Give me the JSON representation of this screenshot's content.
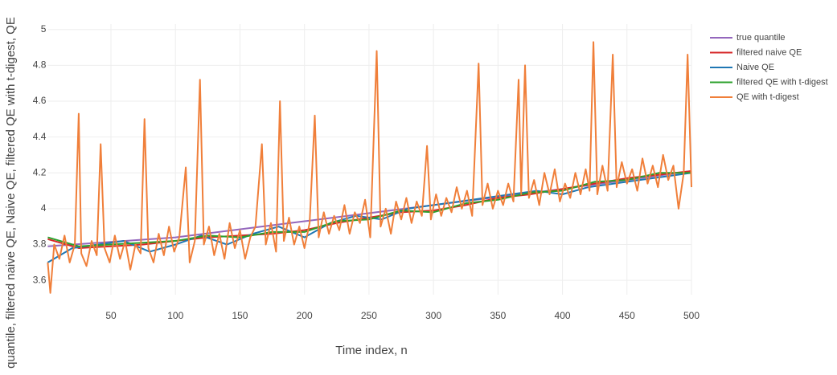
{
  "chart_data": {
    "type": "line",
    "ylabel": "quantile, filtered naive QE, Naive QE, filtered QE with t-digest, QE",
    "xlabel": "Time index, n",
    "xlim": [
      1,
      500
    ],
    "ylim": [
      3.52,
      5.03
    ],
    "xticks": [
      50,
      100,
      150,
      200,
      250,
      300,
      350,
      400,
      450,
      500
    ],
    "yticks": [
      3.6,
      3.8,
      4,
      4.2,
      4.4,
      4.6,
      4.8,
      5
    ],
    "grid": true,
    "legend": "right",
    "series": [
      {
        "name": "true quantile",
        "color": "#9467bd",
        "x": [
          1,
          100,
          200,
          300,
          400,
          500
        ],
        "values": [
          3.79,
          3.84,
          3.93,
          4.02,
          4.11,
          4.21
        ]
      },
      {
        "name": "filtered naive QE",
        "color": "#d62728",
        "x": [
          1,
          25,
          50,
          75,
          100,
          125,
          150,
          175,
          200,
          225,
          250,
          275,
          300,
          325,
          350,
          375,
          400,
          425,
          450,
          475,
          500
        ],
        "values": [
          3.83,
          3.78,
          3.79,
          3.8,
          3.82,
          3.84,
          3.85,
          3.86,
          3.88,
          3.92,
          3.95,
          3.98,
          3.99,
          4.02,
          4.06,
          4.08,
          4.11,
          4.14,
          4.17,
          4.19,
          4.21
        ]
      },
      {
        "name": "Naive QE",
        "color": "#1f77b4",
        "x": [
          1,
          20,
          40,
          60,
          80,
          100,
          120,
          140,
          160,
          180,
          200,
          220,
          240,
          260,
          280,
          300,
          320,
          340,
          360,
          380,
          400,
          420,
          440,
          460,
          480,
          500
        ],
        "values": [
          3.7,
          3.78,
          3.8,
          3.82,
          3.76,
          3.8,
          3.85,
          3.8,
          3.86,
          3.9,
          3.84,
          3.92,
          3.96,
          3.94,
          4.0,
          4.02,
          4.04,
          4.06,
          4.08,
          4.1,
          4.08,
          4.12,
          4.14,
          4.16,
          4.18,
          4.2
        ]
      },
      {
        "name": "filtered QE with t-digest",
        "color": "#2ca02c",
        "x": [
          1,
          25,
          50,
          75,
          100,
          125,
          150,
          175,
          200,
          225,
          250,
          275,
          300,
          325,
          350,
          375,
          400,
          425,
          450,
          475,
          500
        ],
        "values": [
          3.84,
          3.79,
          3.8,
          3.81,
          3.82,
          3.85,
          3.84,
          3.87,
          3.87,
          3.93,
          3.94,
          3.99,
          3.98,
          4.03,
          4.05,
          4.09,
          4.1,
          4.15,
          4.16,
          4.2,
          4.2
        ]
      },
      {
        "name": "QE with t-digest",
        "color": "#f07f3a",
        "x": [
          1,
          3,
          6,
          10,
          14,
          18,
          22,
          25,
          27,
          31,
          35,
          39,
          42,
          45,
          49,
          53,
          57,
          61,
          65,
          69,
          73,
          76,
          79,
          83,
          87,
          91,
          95,
          99,
          103,
          108,
          111,
          115,
          119,
          122,
          126,
          130,
          134,
          138,
          142,
          146,
          150,
          154,
          158,
          162,
          167,
          170,
          174,
          178,
          181,
          184,
          188,
          192,
          196,
          200,
          204,
          208,
          211,
          215,
          219,
          223,
          227,
          231,
          235,
          239,
          243,
          247,
          251,
          256,
          259,
          263,
          267,
          271,
          275,
          279,
          283,
          287,
          291,
          295,
          298,
          302,
          306,
          310,
          314,
          318,
          322,
          326,
          330,
          335,
          338,
          342,
          346,
          350,
          354,
          358,
          362,
          366,
          368,
          371,
          374,
          378,
          382,
          386,
          390,
          394,
          398,
          402,
          406,
          410,
          414,
          418,
          421,
          424,
          427,
          431,
          435,
          439,
          442,
          446,
          450,
          454,
          458,
          462,
          466,
          470,
          474,
          478,
          482,
          486,
          490,
          494,
          497,
          500
        ],
        "values": [
          3.7,
          3.53,
          3.8,
          3.72,
          3.85,
          3.7,
          3.8,
          4.53,
          3.75,
          3.68,
          3.82,
          3.74,
          4.36,
          3.78,
          3.7,
          3.85,
          3.72,
          3.82,
          3.66,
          3.8,
          3.75,
          4.5,
          3.78,
          3.7,
          3.86,
          3.74,
          3.9,
          3.76,
          3.84,
          4.23,
          3.7,
          3.82,
          4.72,
          3.8,
          3.9,
          3.74,
          3.86,
          3.72,
          3.92,
          3.78,
          3.88,
          3.72,
          3.84,
          3.9,
          4.36,
          3.8,
          3.92,
          3.76,
          4.6,
          3.82,
          3.95,
          3.8,
          3.9,
          3.78,
          3.92,
          4.52,
          3.84,
          3.98,
          3.86,
          3.96,
          3.88,
          4.02,
          3.86,
          3.98,
          3.92,
          4.05,
          3.84,
          4.88,
          3.9,
          4.0,
          3.86,
          4.04,
          3.94,
          4.06,
          3.92,
          4.04,
          3.96,
          4.35,
          3.94,
          4.08,
          3.96,
          4.06,
          3.98,
          4.12,
          4.0,
          4.1,
          3.96,
          4.81,
          4.02,
          4.14,
          4.0,
          4.1,
          4.02,
          4.14,
          4.04,
          4.72,
          4.08,
          4.8,
          4.06,
          4.16,
          4.02,
          4.2,
          4.08,
          4.22,
          4.04,
          4.14,
          4.06,
          4.2,
          4.08,
          4.22,
          4.1,
          4.93,
          4.08,
          4.24,
          4.1,
          4.86,
          4.12,
          4.26,
          4.14,
          4.22,
          4.1,
          4.28,
          4.14,
          4.24,
          4.12,
          4.3,
          4.16,
          4.24,
          4.0,
          4.2,
          4.86,
          4.12
        ]
      }
    ]
  }
}
